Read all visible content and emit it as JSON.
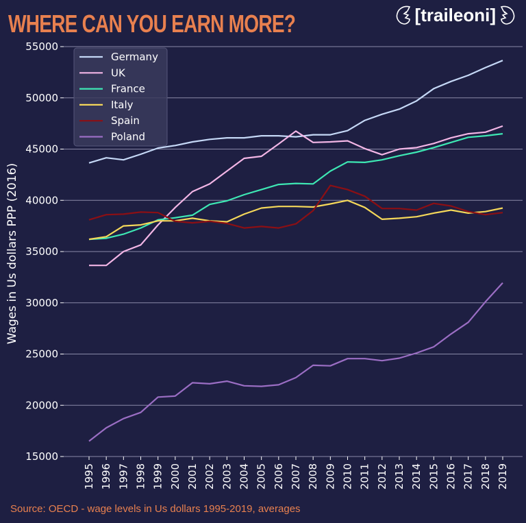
{
  "header": {
    "title": "WHERE CAN YOU EARN MORE?",
    "logo_text": "[traileoni]"
  },
  "footer": {
    "source": "Source: OECD - wage levels in Us dollars 1995-2019, averages"
  },
  "colors": {
    "background": "#1e1f42",
    "accent": "#e8804f",
    "grid": "#8a8aa8"
  },
  "chart_data": {
    "type": "line",
    "title": "WHERE CAN YOU EARN MORE?",
    "xlabel": "",
    "ylabel": "Wages in Us dollars PPP (2016)",
    "ylim": [
      15000,
      55000
    ],
    "yticks": [
      15000,
      20000,
      25000,
      30000,
      35000,
      40000,
      45000,
      50000,
      55000
    ],
    "grid": "horizontal",
    "legend_position": "top-left",
    "x": [
      1995,
      1996,
      1997,
      1998,
      1999,
      2000,
      2001,
      2002,
      2003,
      2004,
      2005,
      2006,
      2007,
      2008,
      2009,
      2010,
      2011,
      2012,
      2013,
      2014,
      2015,
      2016,
      2017,
      2018,
      2019
    ],
    "series": [
      {
        "name": "Germany",
        "color": "#c5d8f6",
        "values": [
          43650,
          44150,
          43950,
          44500,
          45100,
          45350,
          45700,
          45950,
          46100,
          46100,
          46300,
          46300,
          46200,
          46400,
          46400,
          46800,
          47800,
          48400,
          48900,
          49700,
          50900,
          51600,
          52200,
          52950,
          53650
        ]
      },
      {
        "name": "UK",
        "color": "#f3b6e6",
        "values": [
          33650,
          33650,
          35000,
          35650,
          37600,
          39300,
          40850,
          41600,
          42850,
          44100,
          44300,
          45500,
          46750,
          45650,
          45700,
          45800,
          45050,
          44450,
          45000,
          45150,
          45550,
          46100,
          46500,
          46650,
          47250
        ]
      },
      {
        "name": "France",
        "color": "#3ee8b4",
        "values": [
          36200,
          36300,
          36700,
          37300,
          38100,
          38300,
          38550,
          39600,
          39950,
          40550,
          41050,
          41550,
          41650,
          41600,
          42850,
          43750,
          43700,
          43950,
          44350,
          44700,
          45150,
          45650,
          46150,
          46300,
          46500
        ]
      },
      {
        "name": "Italy",
        "color": "#f5d85a",
        "values": [
          36200,
          36450,
          37500,
          37600,
          38000,
          38000,
          38250,
          38000,
          37900,
          38650,
          39250,
          39400,
          39400,
          39350,
          39650,
          40000,
          39300,
          38150,
          38250,
          38400,
          38750,
          39050,
          38750,
          38900,
          39250
        ]
      },
      {
        "name": "Spain",
        "color": "#8c0f14",
        "values": [
          38100,
          38600,
          38650,
          38850,
          38800,
          37950,
          37800,
          37950,
          37750,
          37300,
          37450,
          37300,
          37700,
          39000,
          41450,
          41050,
          40400,
          39200,
          39200,
          39050,
          39700,
          39450,
          38900,
          38600,
          38800
        ]
      },
      {
        "name": "Poland",
        "color": "#9b6ec4",
        "values": [
          16500,
          17800,
          18700,
          19300,
          20800,
          20900,
          22200,
          22100,
          22350,
          21900,
          21850,
          22000,
          22700,
          23900,
          23850,
          24550,
          24550,
          24350,
          24600,
          25100,
          25700,
          26950,
          28100,
          30100,
          31950
        ]
      }
    ]
  }
}
